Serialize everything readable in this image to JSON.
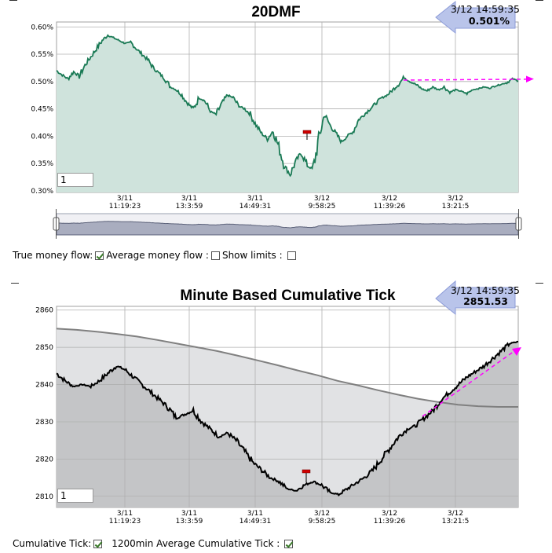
{
  "chart_data": [
    {
      "type": "area",
      "title": "20DMF",
      "readout": {
        "time": "3/12 14:59:35",
        "value": "0.501%"
      },
      "y_ticks": [
        "0.60%",
        "0.55%",
        "0.50%",
        "0.45%",
        "0.40%",
        "0.35%",
        "0.30%"
      ],
      "ylim": [
        0.297,
        0.609
      ],
      "x_ticks": [
        {
          "date": "3/11",
          "time": "11:19:23"
        },
        {
          "date": "3/11",
          "time": "13:3:59"
        },
        {
          "date": "3/11",
          "time": "14:49:31"
        },
        {
          "date": "3/12",
          "time": "9:58:25"
        },
        {
          "date": "3/12",
          "time": "11:39:26"
        },
        {
          "date": "3/12",
          "time": "13:21:5"
        }
      ],
      "zoom_value": "1",
      "series": [
        {
          "values": [
            0.52,
            0.512,
            0.505,
            0.518,
            0.51,
            0.53,
            0.545,
            0.56,
            0.575,
            0.585,
            0.58,
            0.575,
            0.57,
            0.572,
            0.56,
            0.55,
            0.54,
            0.525,
            0.515,
            0.505,
            0.49,
            0.485,
            0.475,
            0.46,
            0.45,
            0.47,
            0.465,
            0.445,
            0.44,
            0.46,
            0.475,
            0.47,
            0.455,
            0.45,
            0.44,
            0.42,
            0.405,
            0.395,
            0.41,
            0.38,
            0.345,
            0.33,
            0.355,
            0.37,
            0.345,
            0.34,
            0.395,
            0.44,
            0.42,
            0.405,
            0.39,
            0.4,
            0.408,
            0.43,
            0.44,
            0.45,
            0.46,
            0.47,
            0.475,
            0.485,
            0.495,
            0.508,
            0.5,
            0.495,
            0.487,
            0.483,
            0.49,
            0.485,
            0.49,
            0.48,
            0.485,
            0.482,
            0.478,
            0.485,
            0.487,
            0.49,
            0.488,
            0.492,
            0.495,
            0.498,
            0.505,
            0.501
          ]
        }
      ],
      "arrow_label": ""
    },
    {
      "type": "line",
      "title": "Minute Based Cumulative Tick",
      "readout": {
        "time": "3/12 14:59:35",
        "value": "2851.53"
      },
      "y_ticks": [
        "2860",
        "2850",
        "2840",
        "2830",
        "2820",
        "2810"
      ],
      "ylim": [
        2807,
        2861
      ],
      "x_ticks": [
        {
          "date": "3/11",
          "time": "11:19:23"
        },
        {
          "date": "3/11",
          "time": "13:3:59"
        },
        {
          "date": "3/11",
          "time": "14:49:31"
        },
        {
          "date": "3/12",
          "time": "9:58:25"
        },
        {
          "date": "3/12",
          "time": "11:39:26"
        },
        {
          "date": "3/12",
          "time": "13:21:5"
        }
      ],
      "zoom_value": "1",
      "series": [
        {
          "values": [
            2843,
            2841,
            2839.5,
            2840,
            2839.5,
            2841,
            2843,
            2845,
            2844,
            2842,
            2840,
            2838,
            2836,
            2834,
            2831,
            2832,
            2833,
            2830,
            2828,
            2826,
            2827,
            2825,
            2822,
            2819,
            2817,
            2815,
            2814,
            2812,
            2811.5,
            2813,
            2814,
            2813,
            2811,
            2810.5,
            2812,
            2813.5,
            2815,
            2817,
            2820,
            2823,
            2826,
            2828,
            2829,
            2831,
            2833,
            2836,
            2838,
            2840,
            2842,
            2843.5,
            2845,
            2847,
            2849,
            2851,
            2851.5
          ]
        },
        {
          "values": [
            2855,
            2854.7,
            2854.2,
            2853.6,
            2852.9,
            2852,
            2851,
            2850,
            2849,
            2847.8,
            2846.5,
            2845.2,
            2843.8,
            2842.5,
            2841,
            2839.8,
            2838.5,
            2837.3,
            2836.2,
            2835.3,
            2834.6,
            2834.2,
            2834,
            2834
          ]
        }
      ]
    }
  ],
  "controls_top": {
    "true_money_flow_label": "True money flow:",
    "average_money_flow_label": "Average money flow :",
    "show_limits_label": "Show limits :"
  },
  "controls_bottom": {
    "cumulative_tick_label": "Cumulative Tick:",
    "avg_cumulative_tick_label": "1200min Average Cumulative Tick :"
  },
  "colors": {
    "mf_line": "#1a7a55",
    "mf_fill": "#cfe3dc",
    "tick_line": "#000000",
    "avg_line": "#808080",
    "arrow": "#ff00ff",
    "readout_fill": "#b9c4ea"
  }
}
